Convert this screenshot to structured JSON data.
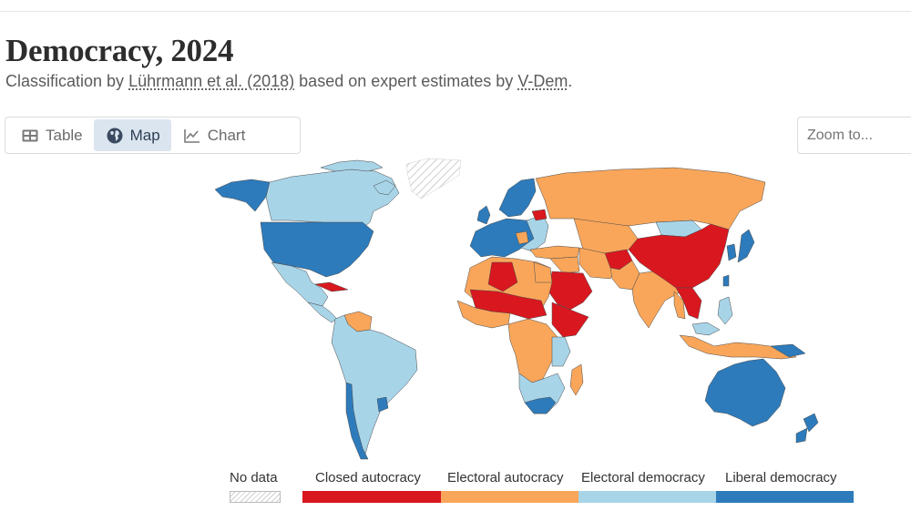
{
  "header": {
    "title": "Democracy, 2024",
    "subtitle_before": "Classification by ",
    "subtitle_link1": "Lührmann et al. (2018)",
    "subtitle_middle": " based on expert estimates by ",
    "subtitle_link2": "V-Dem",
    "subtitle_after": "."
  },
  "tabs": [
    {
      "label": "Table",
      "icon": "table-icon",
      "active": false
    },
    {
      "label": "Map",
      "icon": "globe-icon",
      "active": true
    },
    {
      "label": "Chart",
      "icon": "line-chart-icon",
      "active": false
    }
  ],
  "zoom": {
    "placeholder": "Zoom to..."
  },
  "legend": {
    "no_data": "No data",
    "categories": [
      {
        "label": "Closed autocracy",
        "color": "#d9171f"
      },
      {
        "label": "Electoral autocracy",
        "color": "#f9a65a"
      },
      {
        "label": "Electoral democracy",
        "color": "#a8d4e8"
      },
      {
        "label": "Liberal democracy",
        "color": "#2d7bbb"
      }
    ]
  },
  "colors": {
    "closed_autocracy": "#d9171f",
    "electoral_autocracy": "#f9a65a",
    "electoral_democracy": "#a8d4e8",
    "liberal_democracy": "#2d7bbb",
    "no_data_hatch": "#cfcfcf",
    "active_tab_bg": "#dbe5f0"
  }
}
